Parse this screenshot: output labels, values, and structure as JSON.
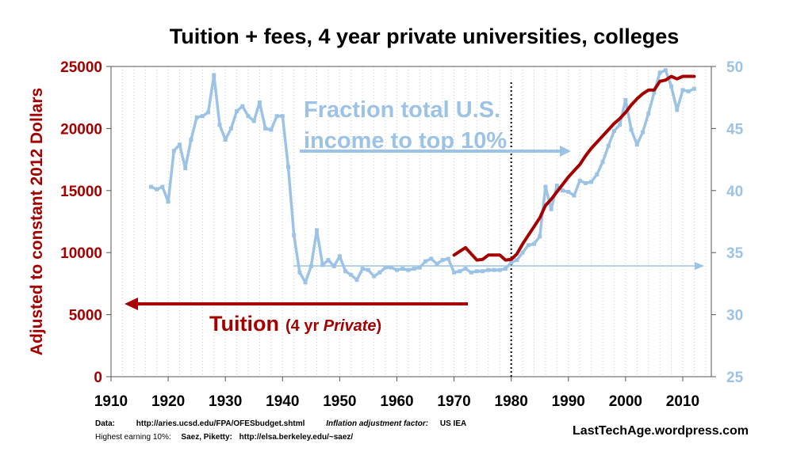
{
  "chart_data": {
    "type": "line",
    "title": "Tuition + fees, 4 year private universities, colleges",
    "ylabel": "Adjusted to constant 2012 Dollars",
    "xlim": [
      1910,
      2015
    ],
    "ylim": [
      0,
      25000
    ],
    "y2lim": [
      25,
      50
    ],
    "x_ticks": [
      "1910",
      "1920",
      "1930",
      "1940",
      "1950",
      "1960",
      "1970",
      "1980",
      "1990",
      "2000",
      "2010"
    ],
    "y_ticks_left": [
      "0",
      "5000",
      "10000",
      "15000",
      "20000",
      "25000"
    ],
    "y_ticks_right": [
      "25",
      "30",
      "35",
      "40",
      "45",
      "50"
    ],
    "series": [
      {
        "name": "Fraction total U.S. income to top 10%",
        "axis": "right",
        "color": "#9cc3e5",
        "x": [
          1917,
          1918,
          1919,
          1920,
          1921,
          1922,
          1923,
          1924,
          1925,
          1926,
          1927,
          1928,
          1929,
          1930,
          1931,
          1932,
          1933,
          1934,
          1935,
          1936,
          1937,
          1938,
          1939,
          1940,
          1941,
          1942,
          1943,
          1944,
          1945,
          1946,
          1947,
          1948,
          1949,
          1950,
          1951,
          1952,
          1953,
          1954,
          1955,
          1956,
          1957,
          1958,
          1959,
          1960,
          1961,
          1962,
          1963,
          1964,
          1965,
          1966,
          1967,
          1968,
          1969,
          1970,
          1971,
          1972,
          1973,
          1974,
          1975,
          1976,
          1977,
          1978,
          1979,
          1980,
          1981,
          1982,
          1983,
          1984,
          1985,
          1986,
          1987,
          1988,
          1989,
          1990,
          1991,
          1992,
          1993,
          1994,
          1995,
          1996,
          1997,
          1998,
          1999,
          2000,
          2001,
          2002,
          2003,
          2004,
          2005,
          2006,
          2007,
          2008,
          2009,
          2010,
          2011,
          2012
        ],
        "values": [
          40.3,
          40.1,
          40.3,
          39.1,
          43.2,
          43.7,
          41.8,
          44.1,
          45.9,
          46.0,
          46.3,
          49.3,
          45.3,
          44.1,
          45.0,
          46.4,
          46.8,
          46.0,
          45.6,
          47.1,
          45.0,
          44.9,
          46.0,
          46.0,
          41.9,
          36.4,
          33.4,
          32.6,
          33.9,
          36.8,
          34.0,
          34.4,
          33.9,
          34.7,
          33.5,
          33.2,
          32.8,
          33.7,
          33.6,
          33.1,
          33.4,
          33.8,
          33.8,
          33.6,
          33.7,
          33.6,
          33.7,
          33.8,
          34.3,
          34.5,
          34.1,
          34.4,
          34.5,
          33.4,
          33.5,
          33.7,
          33.4,
          33.5,
          33.5,
          33.6,
          33.6,
          33.6,
          33.7,
          34.2,
          34.4,
          35.0,
          35.6,
          35.7,
          36.3,
          40.3,
          38.5,
          40.4,
          40.0,
          39.9,
          39.6,
          40.8,
          40.6,
          40.7,
          41.3,
          42.3,
          43.6,
          44.8,
          45.3,
          47.3,
          44.9,
          43.7,
          44.7,
          46.2,
          47.9,
          49.5,
          49.7,
          48.4,
          46.5,
          48.1,
          48.0,
          48.2
        ]
      },
      {
        "name": "Tuition (4 yr Private)",
        "axis": "left",
        "color": "#a50000",
        "x": [
          1970,
          1971,
          1972,
          1973,
          1974,
          1975,
          1976,
          1977,
          1978,
          1979,
          1980,
          1981,
          1982,
          1983,
          1984,
          1985,
          1986,
          1987,
          1988,
          1989,
          1990,
          1991,
          1992,
          1993,
          1994,
          1995,
          1996,
          1997,
          1998,
          1999,
          2000,
          2001,
          2002,
          2003,
          2004,
          2005,
          2006,
          2007,
          2008,
          2009,
          2010,
          2011,
          2012
        ],
        "values": [
          9800,
          10100,
          10400,
          9900,
          9400,
          9450,
          9800,
          9800,
          9800,
          9400,
          9450,
          9900,
          10700,
          11400,
          12100,
          12800,
          13800,
          14300,
          14900,
          15500,
          16100,
          16600,
          17100,
          17800,
          18400,
          18900,
          19400,
          19900,
          20400,
          20800,
          21300,
          21900,
          22400,
          22800,
          23100,
          23100,
          23800,
          23900,
          24200,
          24000,
          24200,
          24200,
          24200
        ]
      }
    ],
    "annotations": {
      "blue_line1": "Fraction total U.S.",
      "blue_line2": "income to top 10%",
      "red_main": "Tuition",
      "red_open": "(",
      "red_yr": "4 yr ",
      "red_private": "Private",
      "red_close": ")"
    },
    "reference_line_x": 1980
  },
  "footer": {
    "data_label": "Data:",
    "data_url": "http://aries.ucsd.edu/FPA/OFESbudget.shtml",
    "inflation_label": "Inflation adjustment factor:",
    "inflation_value": "US IEA",
    "top10_label": "Highest earning 10%:",
    "top10_source": "Saez, Piketty:",
    "top10_url": "http://elsa.berkeley.edu/~saez/",
    "credit": "LastTechAge.wordpress.com"
  },
  "colors": {
    "blue": "#9cc3e5",
    "red": "#a50000",
    "grid": "#c8c8c8"
  }
}
